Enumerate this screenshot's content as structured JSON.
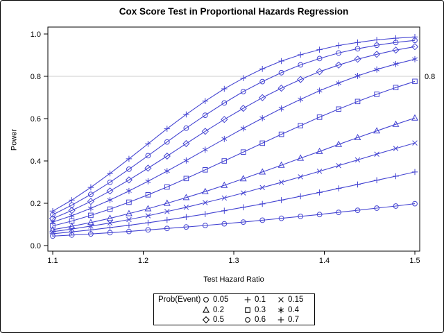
{
  "chart_data": {
    "type": "line",
    "title": "Cox Score Test in Proportional Hazards Regression",
    "xlabel": "Test Hazard Ratio",
    "ylabel": "Power",
    "xlim": [
      1.1,
      1.5
    ],
    "ylim": [
      0.0,
      1.0
    ],
    "grid": false,
    "x_tick_values": [
      1.1,
      1.2,
      1.3,
      1.4,
      1.5
    ],
    "x_tick_labels": [
      "1.1",
      "1.2",
      "1.3",
      "1.4",
      "1.5"
    ],
    "y_tick_values": [
      0.0,
      0.2,
      0.4,
      0.6,
      0.8,
      1.0
    ],
    "y_tick_labels": [
      "0.0",
      "0.2",
      "0.4",
      "0.6",
      "0.8",
      "1.0"
    ],
    "reference_line": {
      "y": 0.8,
      "label": "0.8",
      "color": "#cccccc"
    },
    "line_color": "#4444d2",
    "legend": {
      "title": "Prob(Event)",
      "position": "bottom-outside",
      "marker_color": "#000000"
    },
    "x": [
      1.1,
      1.1211,
      1.1421,
      1.1632,
      1.1842,
      1.2053,
      1.2263,
      1.2474,
      1.2684,
      1.2895,
      1.3105,
      1.3316,
      1.3526,
      1.3737,
      1.3947,
      1.4158,
      1.4368,
      1.4579,
      1.4789,
      1.5
    ],
    "series": [
      {
        "name": "0.05",
        "marker": "circle",
        "values": [
          0.045,
          0.05,
          0.055,
          0.061,
          0.067,
          0.074,
          0.081,
          0.088,
          0.095,
          0.103,
          0.111,
          0.12,
          0.129,
          0.138,
          0.147,
          0.157,
          0.167,
          0.177,
          0.187,
          0.198
        ]
      },
      {
        "name": "0.1",
        "marker": "plus",
        "values": [
          0.056,
          0.065,
          0.074,
          0.085,
          0.096,
          0.108,
          0.121,
          0.135,
          0.149,
          0.165,
          0.181,
          0.197,
          0.215,
          0.233,
          0.251,
          0.27,
          0.289,
          0.309,
          0.328,
          0.348
        ]
      },
      {
        "name": "0.15",
        "marker": "x",
        "values": [
          0.066,
          0.078,
          0.092,
          0.107,
          0.123,
          0.141,
          0.161,
          0.181,
          0.203,
          0.225,
          0.249,
          0.274,
          0.299,
          0.325,
          0.351,
          0.378,
          0.405,
          0.432,
          0.459,
          0.485
        ]
      },
      {
        "name": "0.2",
        "marker": "triangle",
        "values": [
          0.075,
          0.091,
          0.109,
          0.129,
          0.151,
          0.174,
          0.2,
          0.227,
          0.255,
          0.285,
          0.316,
          0.348,
          0.38,
          0.413,
          0.445,
          0.478,
          0.51,
          0.542,
          0.573,
          0.603
        ]
      },
      {
        "name": "0.3",
        "marker": "square",
        "values": [
          0.093,
          0.116,
          0.143,
          0.172,
          0.205,
          0.24,
          0.277,
          0.317,
          0.358,
          0.4,
          0.442,
          0.484,
          0.526,
          0.567,
          0.607,
          0.645,
          0.681,
          0.715,
          0.747,
          0.776
        ]
      },
      {
        "name": "0.4",
        "marker": "star",
        "values": [
          0.111,
          0.141,
          0.176,
          0.215,
          0.258,
          0.304,
          0.352,
          0.402,
          0.453,
          0.504,
          0.554,
          0.602,
          0.648,
          0.691,
          0.732,
          0.768,
          0.802,
          0.832,
          0.858,
          0.881
        ]
      },
      {
        "name": "0.5",
        "marker": "diamond",
        "values": [
          0.128,
          0.166,
          0.209,
          0.258,
          0.31,
          0.366,
          0.423,
          0.482,
          0.54,
          0.596,
          0.649,
          0.699,
          0.744,
          0.785,
          0.822,
          0.853,
          0.881,
          0.904,
          0.924,
          0.94
        ]
      },
      {
        "name": "0.6",
        "marker": "circle",
        "values": [
          0.146,
          0.191,
          0.242,
          0.299,
          0.361,
          0.425,
          0.49,
          0.555,
          0.616,
          0.674,
          0.728,
          0.775,
          0.817,
          0.854,
          0.884,
          0.91,
          0.93,
          0.947,
          0.96,
          0.97
        ]
      },
      {
        "name": "0.7",
        "marker": "plus",
        "values": [
          0.163,
          0.215,
          0.275,
          0.341,
          0.41,
          0.481,
          0.552,
          0.62,
          0.683,
          0.741,
          0.791,
          0.835,
          0.872,
          0.902,
          0.926,
          0.946,
          0.96,
          0.972,
          0.98,
          0.986
        ]
      }
    ]
  }
}
